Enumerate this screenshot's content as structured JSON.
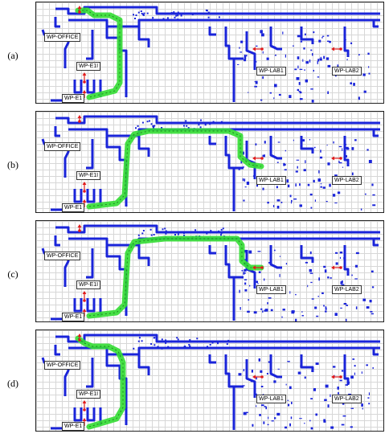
{
  "panels": [
    {
      "label": "(a)"
    },
    {
      "label": "(b)"
    },
    {
      "label": "(c)"
    },
    {
      "label": "(d)"
    }
  ],
  "waypoints": {
    "office": "WP-OFFICE",
    "e1i": "WP-E1I",
    "e1": "WP-E1",
    "lab1": "WP-LAB1",
    "lab2": "WP-LAB2"
  },
  "colors": {
    "walls": "#1a24d9",
    "path": "#33dd33",
    "path_edge": "#1b8a1b",
    "grid": "#d7d7d7",
    "marker": "#e11b1b"
  }
}
